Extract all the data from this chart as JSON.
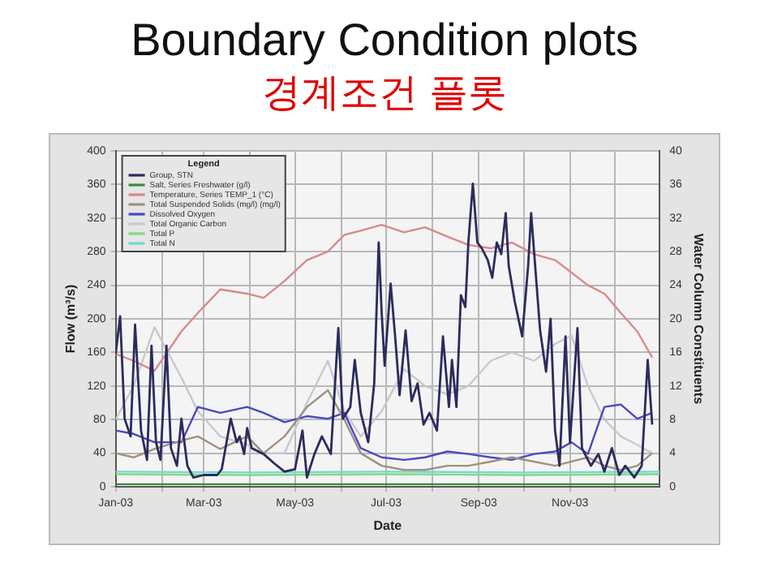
{
  "chart_data": {
    "type": "line",
    "title": "Boundary Condition plots",
    "subtitle": "경계조건 플롯",
    "xlabel": "Date",
    "ylabel": "Flow (m³/s)",
    "y2label": "Water Column Constituents",
    "legend_title": "Legend",
    "xlim": [
      "2003-01-01",
      "2003-12-31"
    ],
    "xticks": [
      {
        "value": "2003-01-01",
        "label": "Jan-03"
      },
      {
        "value": "2003-02-01",
        "label": null
      },
      {
        "value": "2003-03-01",
        "label": "Mar-03"
      },
      {
        "value": "2003-04-01",
        "label": null
      },
      {
        "value": "2003-05-01",
        "label": "May-03"
      },
      {
        "value": "2003-06-01",
        "label": null
      },
      {
        "value": "2003-07-01",
        "label": "Jul-03"
      },
      {
        "value": "2003-08-01",
        "label": null
      },
      {
        "value": "2003-09-01",
        "label": "Sep-03"
      },
      {
        "value": "2003-10-01",
        "label": null
      },
      {
        "value": "2003-11-01",
        "label": "Nov-03"
      },
      {
        "value": "2003-12-01",
        "label": null
      }
    ],
    "ylim": [
      0,
      400
    ],
    "yticks": [
      0,
      40,
      80,
      120,
      160,
      200,
      240,
      280,
      320,
      360,
      400
    ],
    "y2lim": [
      0,
      40
    ],
    "y2ticks": [
      0,
      4,
      8,
      12,
      16,
      20,
      24,
      28,
      32,
      36,
      40
    ],
    "grid": true,
    "legend": "top left",
    "marker": "none",
    "line_style": "solid",
    "series": [
      {
        "name": "Group, STN",
        "color": "#2b2b5e",
        "x": [
          "2003-01-01",
          "2003-01-04",
          "2003-01-07",
          "2003-01-11",
          "2003-01-14",
          "2003-01-18",
          "2003-01-22",
          "2003-01-25",
          "2003-01-28",
          "2003-01-31",
          "2003-02-04",
          "2003-02-07",
          "2003-02-11",
          "2003-02-14",
          "2003-02-18",
          "2003-02-22",
          "2003-03-01",
          "2003-03-10",
          "2003-03-13",
          "2003-03-19",
          "2003-03-23",
          "2003-03-25",
          "2003-03-28",
          "2003-03-30",
          "2003-04-02",
          "2003-04-10",
          "2003-04-17",
          "2003-04-24",
          "2003-05-01",
          "2003-05-06",
          "2003-05-09",
          "2003-05-14",
          "2003-05-19",
          "2003-05-25",
          "2003-05-30",
          "2003-06-02",
          "2003-06-07",
          "2003-06-10",
          "2003-06-14",
          "2003-06-19",
          "2003-06-23",
          "2003-06-26",
          "2003-06-28",
          "2003-06-30",
          "2003-07-04",
          "2003-07-07",
          "2003-07-10",
          "2003-07-14",
          "2003-07-18",
          "2003-07-22",
          "2003-07-26",
          "2003-07-30",
          "2003-08-04",
          "2003-08-08",
          "2003-08-12",
          "2003-08-14",
          "2003-08-17",
          "2003-08-20",
          "2003-08-23",
          "2003-08-25",
          "2003-08-28",
          "2003-08-31",
          "2003-09-03",
          "2003-09-07",
          "2003-09-10",
          "2003-09-13",
          "2003-09-16",
          "2003-09-19",
          "2003-09-21",
          "2003-09-25",
          "2003-09-30",
          "2003-10-04",
          "2003-10-06",
          "2003-10-09",
          "2003-10-12",
          "2003-10-16",
          "2003-10-19",
          "2003-10-22",
          "2003-10-25",
          "2003-10-29",
          "2003-11-01",
          "2003-11-06",
          "2003-11-09",
          "2003-11-15",
          "2003-11-20",
          "2003-11-24",
          "2003-11-29",
          "2003-12-04",
          "2003-12-08",
          "2003-12-14",
          "2003-12-19",
          "2003-12-23",
          "2003-12-26"
        ],
        "values": [
          158,
          203,
          81,
          60,
          193,
          67,
          32,
          168,
          53,
          32,
          168,
          46,
          25,
          81,
          25,
          11,
          14,
          14,
          21,
          81,
          53,
          60,
          39,
          70,
          46,
          39,
          28,
          18,
          21,
          67,
          11,
          39,
          60,
          39,
          189,
          81,
          95,
          151,
          88,
          53,
          123,
          291,
          207,
          144,
          242,
          179,
          109,
          186,
          102,
          123,
          74,
          88,
          67,
          179,
          95,
          151,
          95,
          228,
          214,
          291,
          361,
          291,
          284,
          270,
          249,
          291,
          277,
          326,
          263,
          221,
          179,
          263,
          326,
          256,
          186,
          137,
          200,
          67,
          25,
          179,
          53,
          189,
          46,
          25,
          39,
          18,
          46,
          14,
          25,
          11,
          25,
          151,
          74
        ]
      },
      {
        "name": "Salt, Series Freshwater (g/l)",
        "color": "#3a8a3a",
        "axis": "y2",
        "x": [
          "2003-01-01",
          "2003-04-01",
          "2003-07-01",
          "2003-10-01",
          "2003-12-31"
        ],
        "values": [
          0.3,
          0.3,
          0.3,
          0.3,
          0.3
        ]
      },
      {
        "name": "Temperature, Series TEMP_1 (°C)",
        "color": "#d88a8a",
        "axis": "y2",
        "x": [
          "2003-01-01",
          "2003-01-13",
          "2003-01-27",
          "2003-02-14",
          "2003-02-25",
          "2003-03-12",
          "2003-03-30",
          "2003-04-10",
          "2003-04-24",
          "2003-05-09",
          "2003-05-23",
          "2003-06-03",
          "2003-06-14",
          "2003-06-28",
          "2003-07-13",
          "2003-07-27",
          "2003-08-11",
          "2003-08-25",
          "2003-09-09",
          "2003-09-23",
          "2003-10-08",
          "2003-10-22",
          "2003-11-02",
          "2003-11-13",
          "2003-11-24",
          "2003-12-05",
          "2003-12-16",
          "2003-12-26"
        ],
        "values": [
          15.8,
          15.0,
          13.8,
          18.5,
          20.7,
          23.5,
          23.0,
          22.5,
          24.5,
          27.0,
          28.0,
          30.0,
          30.5,
          31.2,
          30.3,
          30.9,
          29.8,
          28.8,
          28.4,
          29.1,
          27.7,
          27.0,
          25.5,
          24.0,
          23.0,
          20.7,
          18.5,
          15.4
        ]
      },
      {
        "name": "Total Suspended Solids (mg/l) (mg/l)",
        "color": "#a09080",
        "axis": "y2",
        "x": [
          "2003-01-01",
          "2003-01-13",
          "2003-01-27",
          "2003-02-14",
          "2003-02-25",
          "2003-03-12",
          "2003-03-30",
          "2003-04-10",
          "2003-04-24",
          "2003-05-09",
          "2003-05-23",
          "2003-06-03",
          "2003-06-14",
          "2003-06-28",
          "2003-07-13",
          "2003-07-27",
          "2003-08-11",
          "2003-08-25",
          "2003-09-09",
          "2003-09-23",
          "2003-10-08",
          "2003-10-22",
          "2003-11-02",
          "2003-11-13",
          "2003-11-24",
          "2003-12-05",
          "2003-12-16",
          "2003-12-26"
        ],
        "values": [
          4.0,
          3.5,
          4.5,
          5.5,
          6.0,
          4.5,
          6.0,
          4.0,
          6.0,
          9.5,
          11.5,
          8.0,
          4.0,
          2.5,
          2.0,
          2.0,
          2.5,
          2.5,
          3.0,
          3.5,
          3.0,
          2.5,
          3.0,
          3.5,
          2.5,
          2.0,
          2.5,
          4.0
        ]
      },
      {
        "name": "Dissolved Oxygen",
        "color": "#4a4ac0",
        "axis": "y2",
        "x": [
          "2003-01-01",
          "2003-01-13",
          "2003-01-27",
          "2003-02-14",
          "2003-02-25",
          "2003-03-12",
          "2003-03-30",
          "2003-04-10",
          "2003-04-24",
          "2003-05-09",
          "2003-05-23",
          "2003-06-03",
          "2003-06-14",
          "2003-06-28",
          "2003-07-13",
          "2003-07-27",
          "2003-08-11",
          "2003-08-25",
          "2003-09-09",
          "2003-09-23",
          "2003-10-08",
          "2003-10-22",
          "2003-11-02",
          "2003-11-13",
          "2003-11-24",
          "2003-12-05",
          "2003-12-16",
          "2003-12-26"
        ],
        "values": [
          6.7,
          6.3,
          5.3,
          5.3,
          9.5,
          8.8,
          9.5,
          8.8,
          7.7,
          8.4,
          8.1,
          8.8,
          4.6,
          3.5,
          3.2,
          3.5,
          4.2,
          3.9,
          3.5,
          3.2,
          3.9,
          4.2,
          5.3,
          3.9,
          9.5,
          9.8,
          8.1,
          8.8
        ]
      },
      {
        "name": "Total Organic Carbon",
        "color": "#c8c8d0",
        "axis": "y2",
        "x": [
          "2003-01-01",
          "2003-01-13",
          "2003-01-27",
          "2003-02-14",
          "2003-02-25",
          "2003-03-12",
          "2003-03-30",
          "2003-04-10",
          "2003-04-24",
          "2003-05-09",
          "2003-05-23",
          "2003-06-03",
          "2003-06-14",
          "2003-06-28",
          "2003-07-13",
          "2003-07-27",
          "2003-08-11",
          "2003-08-25",
          "2003-09-09",
          "2003-09-23",
          "2003-10-08",
          "2003-10-22",
          "2003-11-02",
          "2003-11-13",
          "2003-11-24",
          "2003-12-05",
          "2003-12-16",
          "2003-12-26"
        ],
        "values": [
          8.0,
          12.0,
          19.0,
          13.0,
          9.0,
          6.0,
          5.0,
          4.0,
          4.0,
          10.0,
          15.0,
          9.0,
          6.0,
          9.0,
          14.0,
          12.0,
          11.0,
          12.0,
          15.0,
          16.0,
          15.0,
          17.0,
          18.0,
          12.0,
          8.0,
          6.0,
          5.0,
          4.0
        ]
      },
      {
        "name": "Total P",
        "color": "#80d880",
        "axis": "y2",
        "x": [
          "2003-01-01",
          "2003-04-01",
          "2003-07-01",
          "2003-10-01",
          "2003-12-31"
        ],
        "values": [
          1.5,
          1.4,
          1.5,
          1.4,
          1.5
        ]
      },
      {
        "name": "Total N",
        "color": "#70d8d8",
        "axis": "y2",
        "x": [
          "2003-01-01",
          "2003-04-01",
          "2003-07-01",
          "2003-10-01",
          "2003-12-31"
        ],
        "values": [
          1.8,
          1.7,
          1.8,
          1.7,
          1.8
        ]
      }
    ]
  }
}
